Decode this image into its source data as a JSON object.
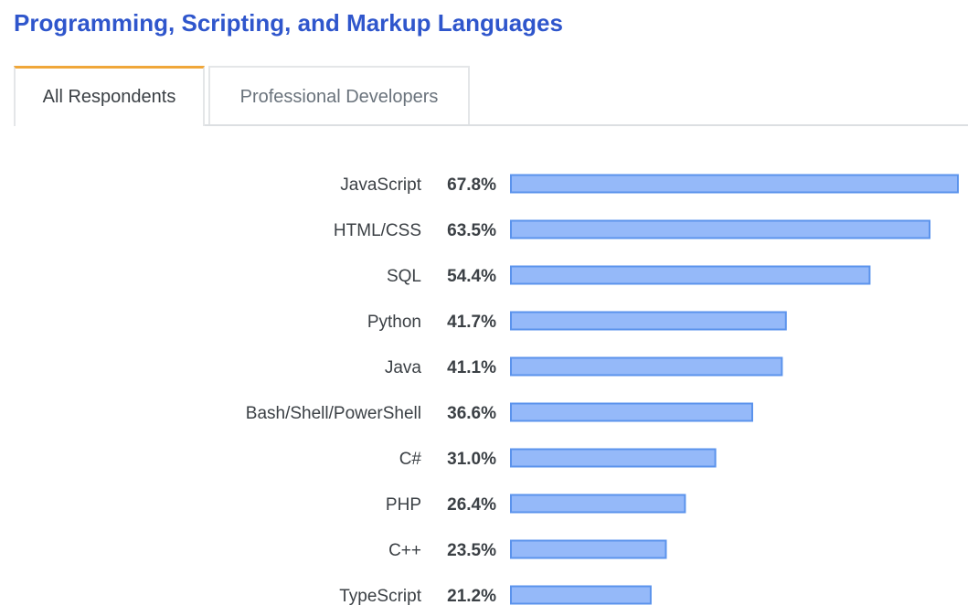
{
  "title": "Programming, Scripting, and Markup Languages",
  "tabs": [
    {
      "label": "All Respondents",
      "active": true
    },
    {
      "label": "Professional Developers",
      "active": false
    }
  ],
  "colors": {
    "title": "#2f56cc",
    "active_tab_accent": "#f0a73a",
    "bar_fill": "#95b9f9",
    "bar_stroke": "#5b93ec"
  },
  "chart_data": {
    "type": "bar",
    "orientation": "horizontal",
    "title": "Programming, Scripting, and Markup Languages",
    "categories": [
      "JavaScript",
      "HTML/CSS",
      "SQL",
      "Python",
      "Java",
      "Bash/Shell/PowerShell",
      "C#",
      "PHP",
      "C++",
      "TypeScript"
    ],
    "values": [
      67.8,
      63.5,
      54.4,
      41.7,
      41.1,
      36.6,
      31.0,
      26.4,
      23.5,
      21.2
    ],
    "value_labels": [
      "67.8%",
      "63.5%",
      "54.4%",
      "41.7%",
      "41.1%",
      "36.6%",
      "31.0%",
      "26.4%",
      "23.5%",
      "21.2%"
    ],
    "xlabel": "",
    "ylabel": "",
    "grid": false
  }
}
